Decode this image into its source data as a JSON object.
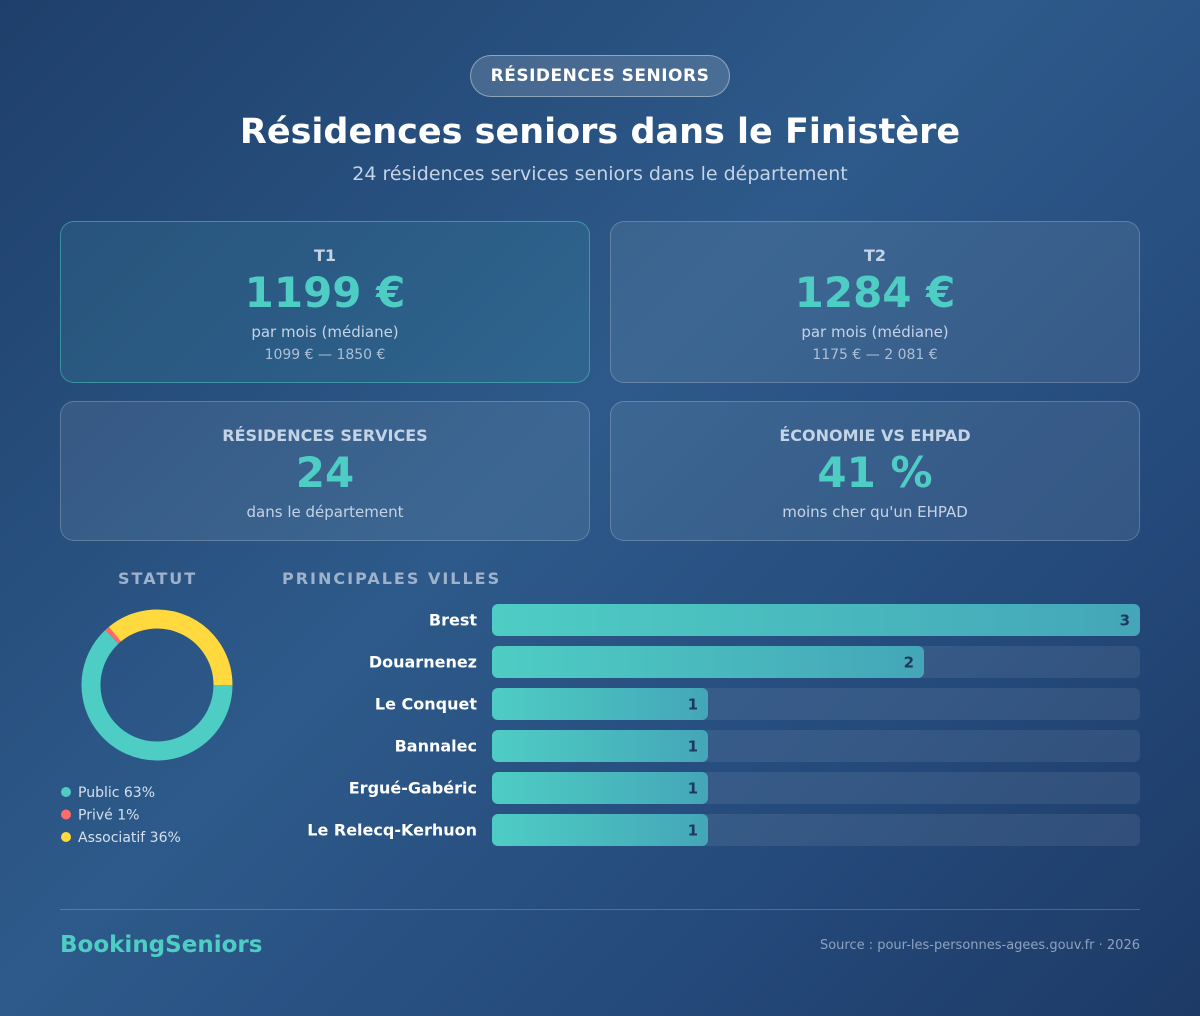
{
  "badge": "RÉSIDENCES SENIORS",
  "header": {
    "title": "Résidences seniors dans le Finistère",
    "subtitle": "24 résidences services seniors dans le département"
  },
  "cards": [
    {
      "label": "T1",
      "value": "1199 €",
      "note": "par mois (médiane)",
      "range": "1099 € — 1850 €"
    },
    {
      "label": "T2",
      "value": "1284 €",
      "note": "par mois (médiane)",
      "range": "1175 € — 2 081 €"
    },
    {
      "label": "RÉSIDENCES SERVICES",
      "value": "24",
      "note": "dans le département"
    },
    {
      "label": "ÉCONOMIE VS EHPAD",
      "value": "41 %",
      "note": "moins cher qu'un EHPAD"
    }
  ],
  "chart_data": [
    {
      "type": "pie",
      "title": "STATUT",
      "categories": [
        "Public",
        "Privé",
        "Associatif"
      ],
      "values": [
        63,
        1,
        36
      ],
      "value_labels": [
        "63%",
        "1%",
        "36%"
      ],
      "colors": [
        "#4ecdc4",
        "#ff6b6b",
        "#ffd93d"
      ]
    },
    {
      "type": "bar",
      "title": "PRINCIPALES VILLES",
      "categories": [
        "Brest",
        "Douarnenez",
        "Le Conquet",
        "Bannalec",
        "Ergué-Gabéric",
        "Le Relecq-Kerhuon"
      ],
      "values": [
        3,
        2,
        1,
        1,
        1,
        1
      ],
      "color": "#4ecdc4"
    }
  ],
  "footer": {
    "brand": "BookingSeniors",
    "source": "Source : pour-les-personnes-agees.gouv.fr · 2026"
  }
}
